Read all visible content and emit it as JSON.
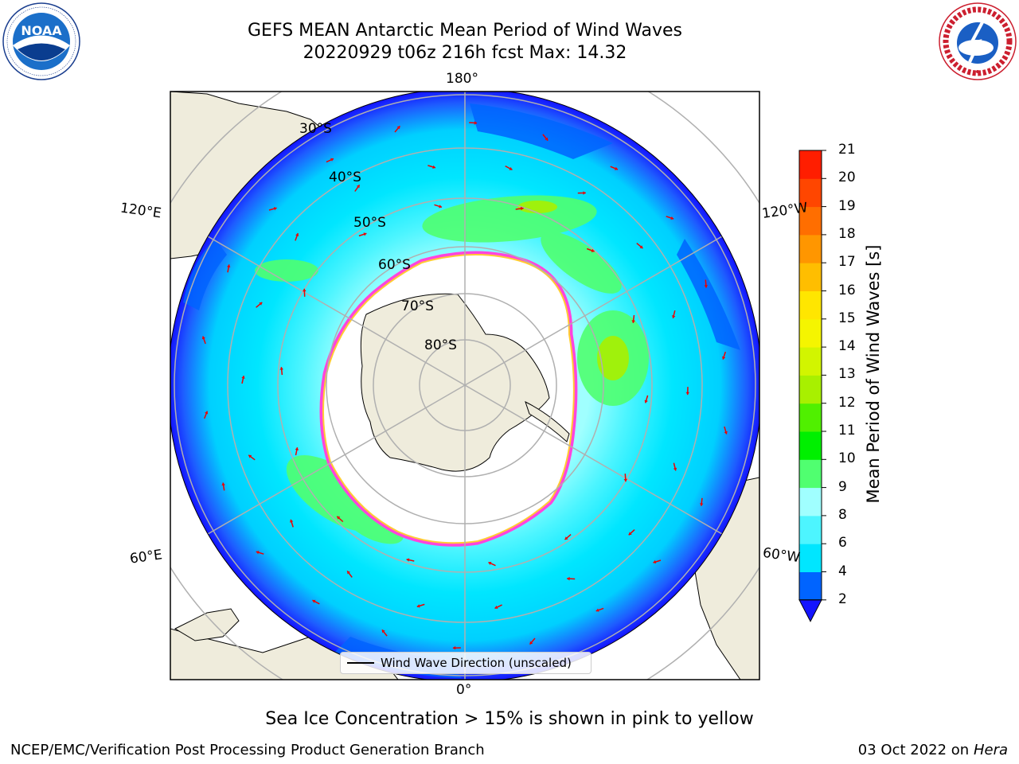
{
  "header": {
    "title_line1": "GEFS MEAN Antarctic Mean Period of Wind Waves",
    "title_line2": "20220929 t06z 216h fcst   Max: 14.32"
  },
  "logos": {
    "left": {
      "name": "noaa-logo",
      "text": "NOAA",
      "ring_text": "NATIONAL OCEANIC AND ATMOSPHERIC ADMINISTRATION · U.S. DEPARTMENT OF COMMERCE"
    },
    "right": {
      "name": "nws-logo",
      "ring_text": "NATIONAL WEATHER SERVICE"
    }
  },
  "map": {
    "projection": "south-polar-stereographic",
    "longitude_labels": {
      "top": "180°",
      "upper_left": "120°E",
      "upper_right": "120°W",
      "lower_left": "60°E",
      "lower_right": "60°W",
      "bottom": "0°"
    },
    "latitude_labels": [
      "30°S",
      "40°S",
      "50°S",
      "60°S",
      "70°S",
      "80°S"
    ],
    "legend": "Wind Wave Direction (unscaled)",
    "colors": {
      "land": "#efecdc",
      "ice_edge_pink": "#ff44dd",
      "ice_edge_yellow": "#ffcc33",
      "arrow": "#ee0000",
      "grid": "#b0b0b0"
    }
  },
  "colorbar": {
    "label": "Mean Period of Wind Waves [s]",
    "ticks": [
      "2",
      "4",
      "6",
      "8",
      "9",
      "10",
      "11",
      "12",
      "13",
      "14",
      "15",
      "16",
      "17",
      "18",
      "19",
      "20",
      "21"
    ],
    "colors": [
      "#0064ff",
      "#00e6ff",
      "#4df5ff",
      "#a0ffff",
      "#50ff70",
      "#00f000",
      "#50f000",
      "#a8f000",
      "#d2f500",
      "#f5f500",
      "#ffe600",
      "#ffbe00",
      "#ff9600",
      "#ff6e00",
      "#ff4600",
      "#ff1e00"
    ],
    "under_color": "#1414ff"
  },
  "footer": {
    "note": "Sea Ice Concentration > 15% is shown in pink to yellow",
    "credit": "NCEP/EMC/Verification Post Processing Product Generation Branch",
    "date": "03 Oct 2022 on ",
    "machine": "Hera"
  }
}
